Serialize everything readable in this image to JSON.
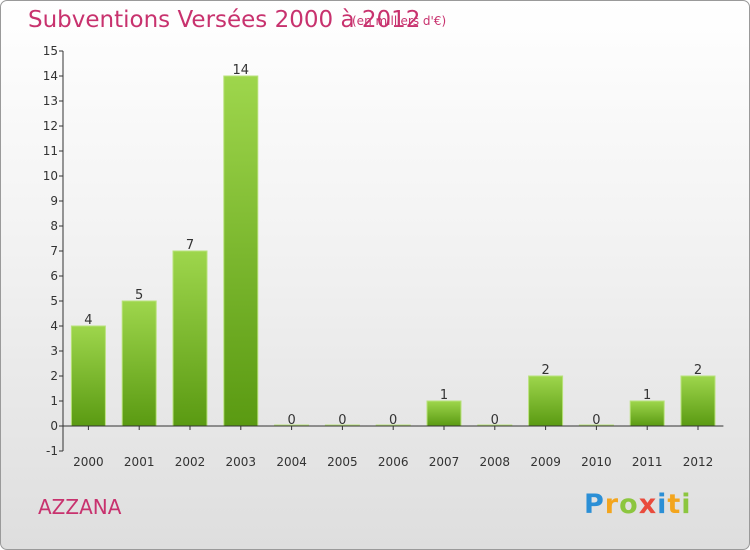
{
  "header": {
    "title": "Subventions Versées 2000 à 2012",
    "unit": "(en milliers d'€)"
  },
  "footer": {
    "commune": "AZZANA",
    "logo_text": "Proxiti"
  },
  "colors": {
    "title": "#c8326e",
    "bar_top": "#9ed64c",
    "bar_bottom": "#5a9a12",
    "axis": "#333333"
  },
  "chart_data": {
    "type": "bar",
    "title": "Subventions Versées 2000 à 2012",
    "subtitle": "(en milliers d'€)",
    "categories": [
      "2000",
      "2001",
      "2002",
      "2003",
      "2004",
      "2005",
      "2006",
      "2007",
      "2008",
      "2009",
      "2010",
      "2011",
      "2012"
    ],
    "values": [
      4,
      5,
      7,
      14,
      0,
      0,
      0,
      1,
      0,
      2,
      0,
      1,
      2
    ],
    "data_labels": [
      "4",
      "5",
      "7",
      "14",
      "0",
      "0",
      "0",
      "1",
      "0",
      "2",
      "0",
      "1",
      "2"
    ],
    "y_ticks": [
      -1,
      0,
      1,
      2,
      3,
      4,
      5,
      6,
      7,
      8,
      9,
      10,
      11,
      12,
      13,
      14,
      15
    ],
    "y_tick_labels": [
      "-1",
      "0",
      "1",
      "2",
      "3",
      "4",
      "5",
      "6",
      "7",
      "8",
      "9",
      "10",
      "11",
      "12",
      "13",
      "14",
      "15"
    ],
    "ylim": [
      -1,
      15
    ],
    "grid": false
  }
}
